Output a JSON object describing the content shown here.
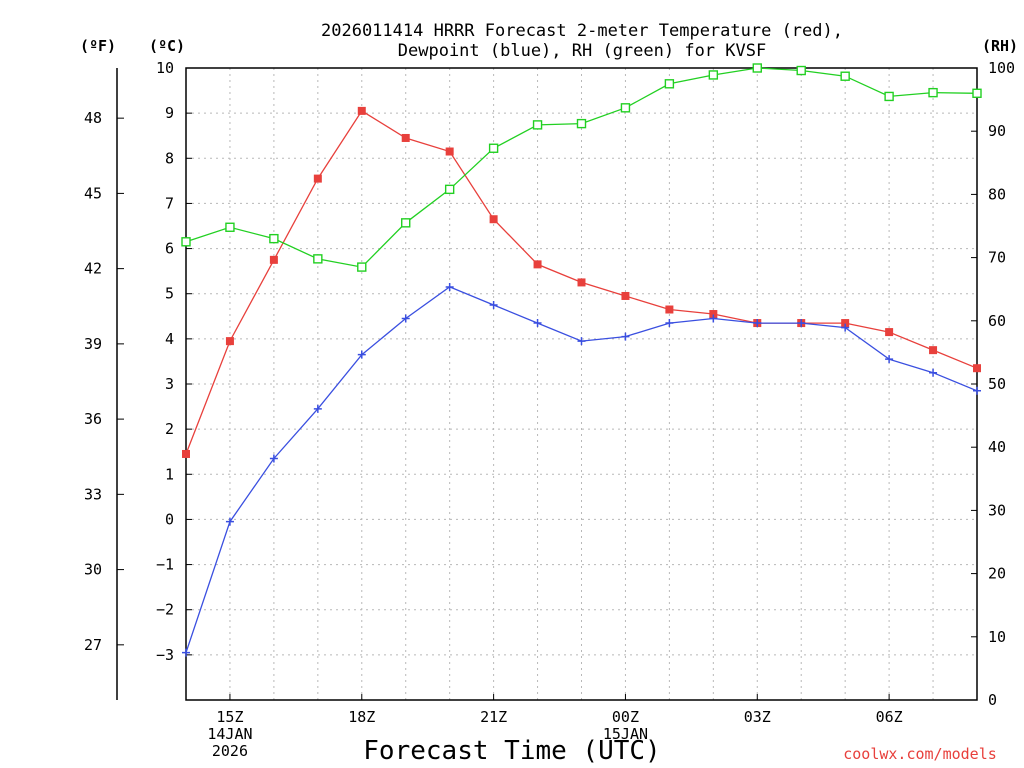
{
  "chart_data": {
    "type": "line",
    "title": "2026011414 HRRR Forecast 2-meter Temperature (red),",
    "title_line2": "Dewpoint (blue), RH (green) for KVSF",
    "xlabel": "Forecast Time (UTC)",
    "unit_f": "(ºF)",
    "unit_c": "(ºC)",
    "unit_rh": "(RH)",
    "credit": "coolwx.com/models",
    "x_hours": [
      14,
      15,
      16,
      17,
      18,
      19,
      20,
      21,
      22,
      23,
      24,
      25,
      26,
      27,
      28,
      29,
      30,
      31,
      32
    ],
    "x_ticks": [
      {
        "hour": 15,
        "lines": [
          "15Z",
          "14JAN",
          "2026"
        ]
      },
      {
        "hour": 18,
        "lines": [
          "18Z"
        ]
      },
      {
        "hour": 21,
        "lines": [
          "21Z"
        ]
      },
      {
        "hour": 24,
        "lines": [
          "00Z",
          "15JAN"
        ]
      },
      {
        "hour": 27,
        "lines": [
          "03Z"
        ]
      },
      {
        "hour": 30,
        "lines": [
          "06Z"
        ]
      }
    ],
    "xlim": [
      14,
      32
    ],
    "ylim_c": [
      -4,
      10
    ],
    "ylim_rh": [
      0,
      100
    ],
    "celsius_ticks": [
      "10",
      "9",
      "8",
      "7",
      "6",
      "5",
      "4",
      "3",
      "2",
      "1",
      "0",
      "−1",
      "−2",
      "−3"
    ],
    "fahrenheit_ticks": [
      "48",
      "45",
      "42",
      "39",
      "36",
      "33",
      "30",
      "27"
    ],
    "rh_ticks": [
      "100",
      "90",
      "80",
      "70",
      "60",
      "50",
      "40",
      "30",
      "20",
      "10",
      "0"
    ],
    "series": [
      {
        "name": "Temperature",
        "color": "#e8403c",
        "marker": "filled-square",
        "axis": "celsius",
        "values": [
          1.45,
          3.95,
          5.75,
          7.55,
          9.05,
          8.45,
          8.15,
          6.65,
          5.65,
          5.25,
          4.95,
          4.65,
          4.55,
          4.35,
          4.35,
          4.35,
          4.15,
          3.75,
          3.35
        ]
      },
      {
        "name": "Dewpoint",
        "color": "#3a4fe0",
        "marker": "plus",
        "axis": "celsius",
        "values": [
          -2.95,
          -0.05,
          1.35,
          2.45,
          3.65,
          4.45,
          5.15,
          4.75,
          4.35,
          3.95,
          4.05,
          4.35,
          4.45,
          4.35,
          4.35,
          4.25,
          3.55,
          3.25,
          2.85
        ]
      },
      {
        "name": "RH",
        "color": "#22d022",
        "marker": "open-square",
        "axis": "rh",
        "values": [
          72.5,
          74.8,
          73.0,
          69.8,
          68.5,
          75.5,
          80.8,
          87.3,
          91.0,
          91.2,
          93.7,
          97.5,
          98.9,
          100.0,
          99.6,
          98.7,
          95.5,
          96.1,
          96.0
        ]
      }
    ],
    "grid": true
  }
}
